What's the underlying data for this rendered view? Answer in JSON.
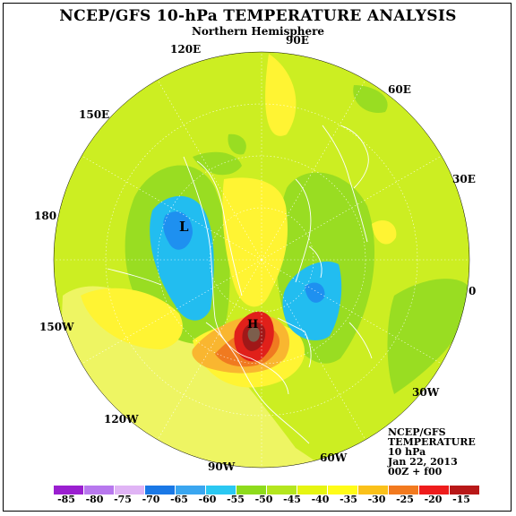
{
  "title": "NCEP/GFS 10-hPa TEMPERATURE ANALYSIS",
  "subtitle": "Northern Hemisphere",
  "longitude_labels": [
    "90E",
    "60E",
    "30E",
    "0",
    "30W",
    "60W",
    "90W",
    "120W",
    "150W",
    "180",
    "150E",
    "120E"
  ],
  "low_marker": "L",
  "high_marker": "H",
  "info": {
    "model": "NCEP/GFS",
    "field": "TEMPERATURE",
    "level": "10 hPa",
    "date": "Jan 22, 2013",
    "cycle": "00Z + f00"
  },
  "colorbar": {
    "labels": [
      "-85",
      "-80",
      "-75",
      "-70",
      "-65",
      "-60",
      "-55",
      "-50",
      "-45",
      "-40",
      "-35",
      "-30",
      "-25",
      "-20",
      "-15"
    ],
    "colors": [
      "#9a1fd0",
      "#b878ee",
      "#e0b4f5",
      "#1a78e6",
      "#3aa6f0",
      "#2bc8f2",
      "#8edb1c",
      "#b4e61e",
      "#e6f511",
      "#fffc18",
      "#fac11a",
      "#f27a1f",
      "#ee1c1c",
      "#b81818"
    ]
  },
  "fill_colors": {
    "background": "#ccee22",
    "yellow": "#fff433",
    "light_yellow": "#f2f56a",
    "green": "#99dd22",
    "cyan": "#22bdf0",
    "blue": "#1e90f0",
    "orange": "#f9b630",
    "dark_orange": "#f07a20",
    "red": "#e0201a",
    "dark_red": "#a01818",
    "brown": "#7c5e4c",
    "coast": "#ffffff"
  }
}
